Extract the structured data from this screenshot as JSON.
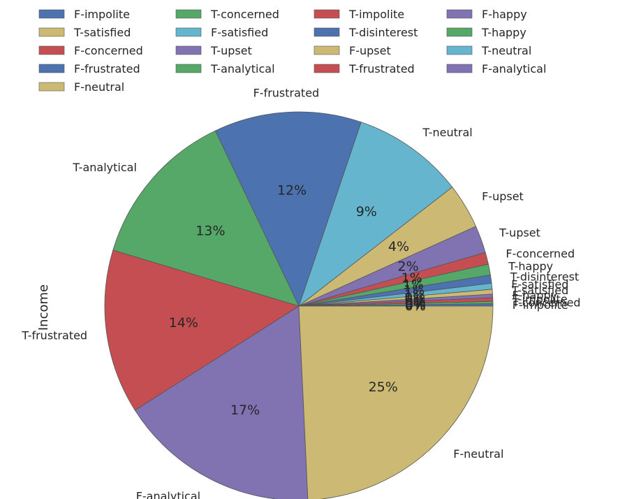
{
  "chart_data": {
    "type": "pie",
    "ylabel": "Income",
    "legend_placement": "top",
    "start_angle_deg": 0,
    "direction": "counterclockwise",
    "slices": [
      {
        "label": "F-impolite",
        "value": 0.2,
        "pct": "0%",
        "color": "#4c72b0"
      },
      {
        "label": "T-concerned",
        "value": 0.2,
        "pct": "0%",
        "color": "#55a868"
      },
      {
        "label": "T-impolite",
        "value": 0.3,
        "pct": "0%",
        "color": "#c44e52"
      },
      {
        "label": "F-happy",
        "value": 0.3,
        "pct": "0%",
        "color": "#8172b2"
      },
      {
        "label": "T-satisfied",
        "value": 0.4,
        "pct": "0%",
        "color": "#ccb974"
      },
      {
        "label": "F-satisfied",
        "value": 0.5,
        "pct": "1%",
        "color": "#64b5cd"
      },
      {
        "label": "T-disinterest",
        "value": 0.7,
        "pct": "1%",
        "color": "#4c72b0"
      },
      {
        "label": "T-happy",
        "value": 0.9,
        "pct": "1%",
        "color": "#55a868"
      },
      {
        "label": "F-concerned",
        "value": 1.0,
        "pct": "1%",
        "color": "#c44e52"
      },
      {
        "label": "T-upset",
        "value": 2.3,
        "pct": "2%",
        "color": "#8172b2"
      },
      {
        "label": "F-upset",
        "value": 3.8,
        "pct": "4%",
        "color": "#ccb974"
      },
      {
        "label": "T-neutral",
        "value": 9.4,
        "pct": "9%",
        "color": "#64b5cd"
      },
      {
        "label": "F-frustrated",
        "value": 12.4,
        "pct": "12%",
        "color": "#4c72b0"
      },
      {
        "label": "T-analytical",
        "value": 13.4,
        "pct": "13%",
        "color": "#55a868"
      },
      {
        "label": "T-frustrated",
        "value": 13.8,
        "pct": "14%",
        "color": "#c44e52"
      },
      {
        "label": "F-analytical",
        "value": 16.9,
        "pct": "17%",
        "color": "#8172b2"
      },
      {
        "label": "F-neutral",
        "value": 24.5,
        "pct": "25%",
        "color": "#ccb974"
      }
    ]
  }
}
